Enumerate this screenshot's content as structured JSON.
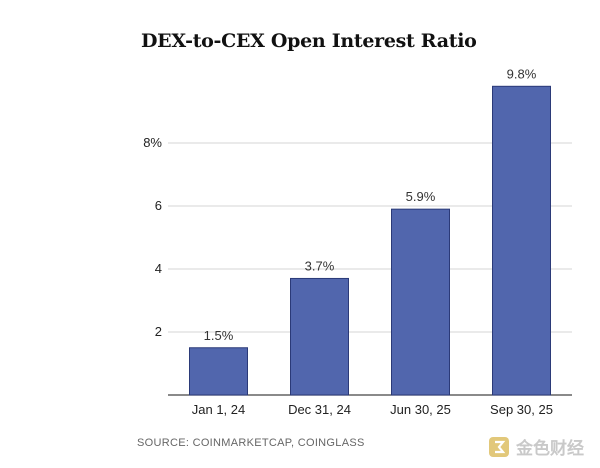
{
  "chart_data": {
    "type": "bar",
    "title": "DEX-to-CEX Open Interest Ratio",
    "categories": [
      "Jan 1, 24",
      "Dec 31, 24",
      "Jun 30, 25",
      "Sep 30, 25"
    ],
    "values": [
      1.5,
      3.7,
      5.9,
      9.8
    ],
    "data_labels": [
      "1.5%",
      "3.7%",
      "5.9%",
      "9.8%"
    ],
    "yticks": [
      2,
      4,
      6,
      8
    ],
    "ytick_labels": [
      "2",
      "4",
      "6",
      "8%"
    ],
    "ylim": [
      0,
      10
    ],
    "xlabel": "",
    "ylabel": "",
    "grid": true,
    "bar_color": "#5166ad",
    "bar_edge_color": "#2b3a78"
  },
  "source": "SOURCE: COINMARKETCAP, COINGLASS",
  "watermark": {
    "text": "金色财经",
    "icon": "jinse-logo-icon"
  }
}
